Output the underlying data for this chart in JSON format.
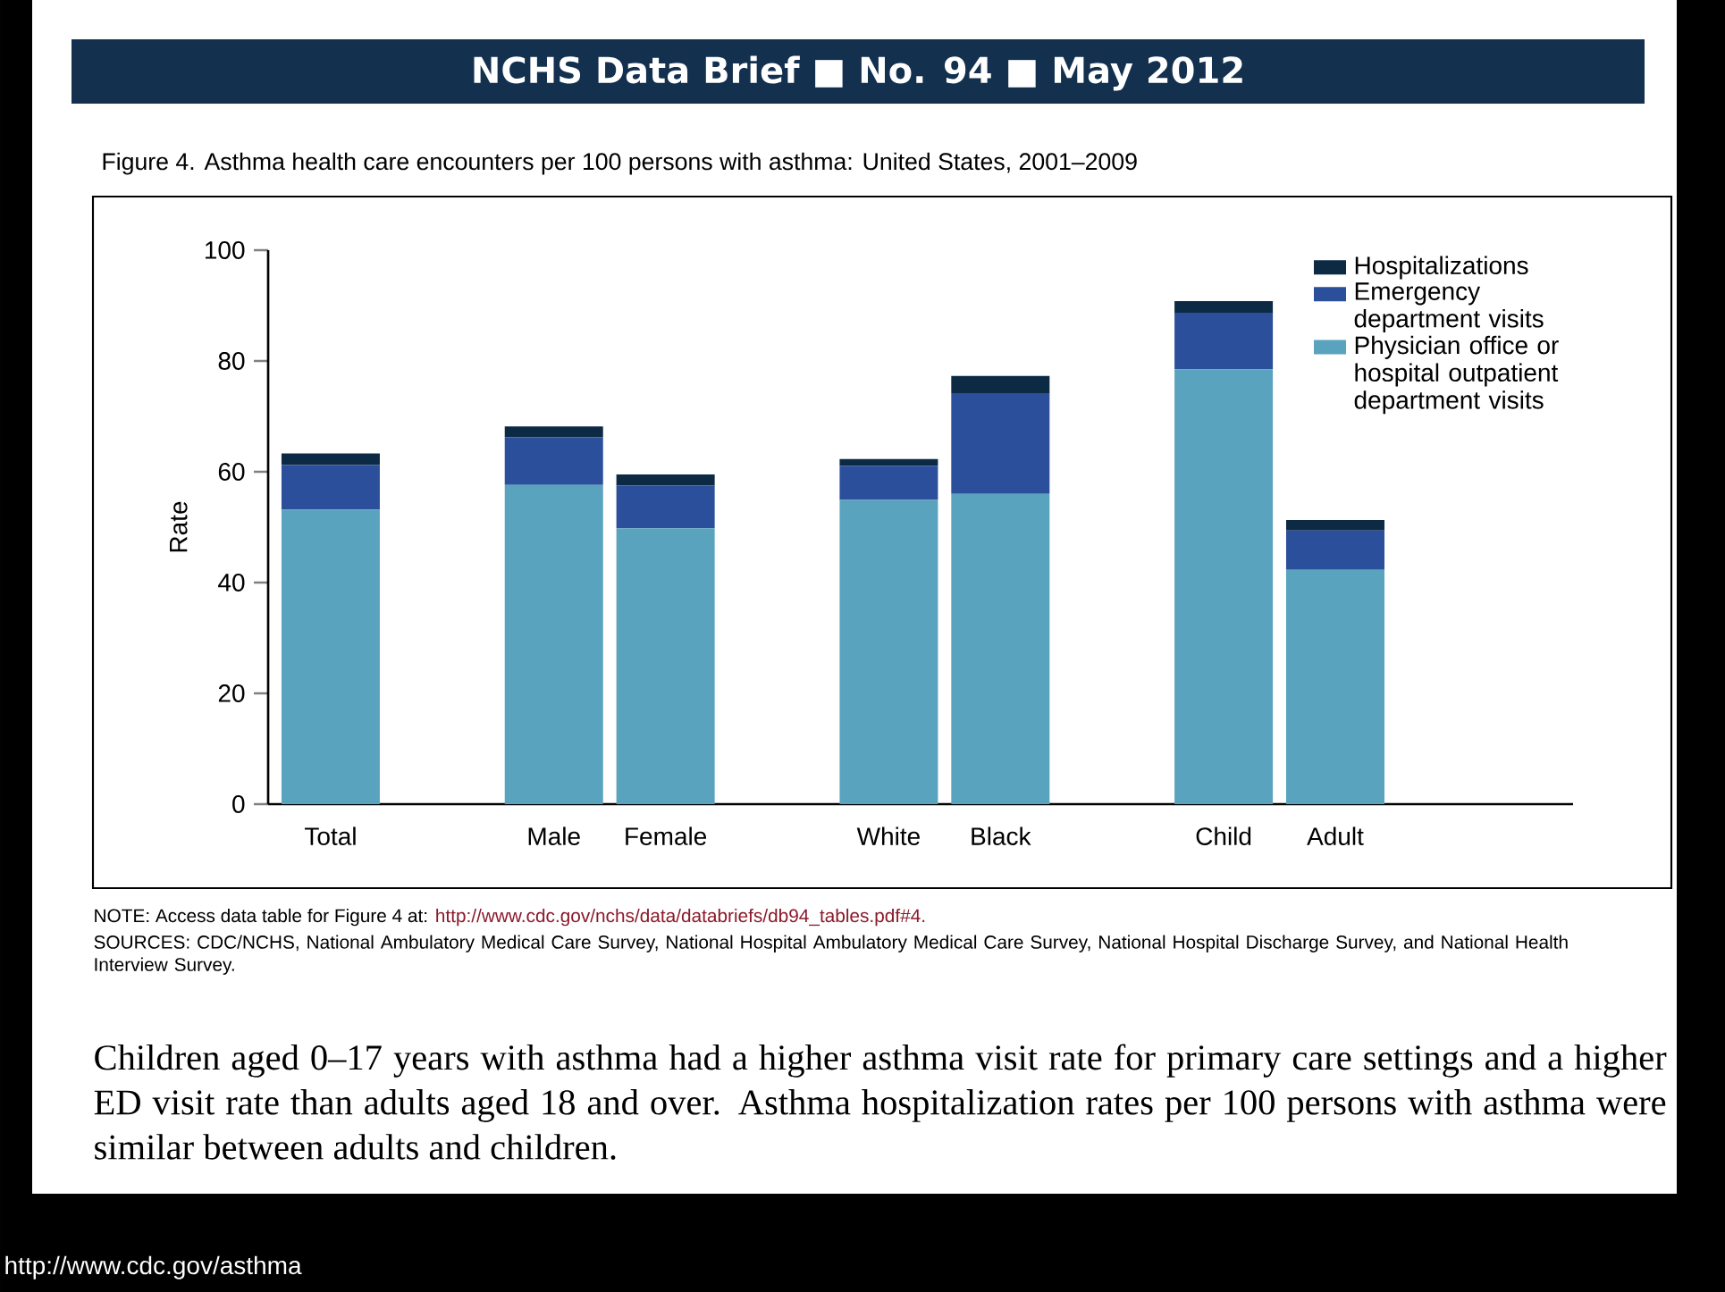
{
  "chart_data": {
    "type": "bar",
    "stacked": true,
    "title": "NCHS Data Brief ■ No. 94 ■ May 2012",
    "subtitle": "Figure 4. Asthma health care encounters per 100 persons with asthma: United States, 2001–2009",
    "ylabel": "Rate",
    "categories": [
      "Total",
      null,
      "Male",
      "Female",
      null,
      "White",
      "Black",
      null,
      "Child",
      "Adult"
    ],
    "series": [
      {
        "name": "Physician office or hospital outpatient department visits",
        "color": "#5aa3bf",
        "values": [
          53.2,
          null,
          57.6,
          49.8,
          null,
          54.9,
          56.0,
          null,
          78.5,
          42.3
        ]
      },
      {
        "name": "Emergency department visits",
        "color": "#2b4f9a",
        "values": [
          8.0,
          null,
          8.6,
          7.7,
          null,
          6.2,
          18.2,
          null,
          10.2,
          7.1
        ]
      },
      {
        "name": "Hospitalizations",
        "color": "#0d2a45",
        "values": [
          2.1,
          null,
          2.0,
          2.0,
          null,
          1.2,
          3.1,
          null,
          2.1,
          1.9
        ]
      }
    ],
    "ylim": [
      0,
      100
    ],
    "yticks": [
      0,
      20,
      40,
      60,
      80,
      100
    ],
    "legend": "top right",
    "annotations": [
      "NOTE: Access data table for Figure 4 at:",
      "http://www.cdc.gov/nchs/data/databriefs/db94_tables.pdf#4.",
      "SOURCES: CDC/NCHS, National Ambulatory Medical Care Survey, National Hospital Ambulatory Medical Care Survey, National Hospital Discharge Survey, and National Health Interview Survey.",
      "Children aged 0–17 years with asthma had a higher asthma visit rate for primary care settings and a higher ED visit rate than adults aged 18 and over. Asthma hospitalization rates per 100 persons with asthma were similar between adults and children.",
      "http://www.cdc.gov/asthma"
    ]
  }
}
